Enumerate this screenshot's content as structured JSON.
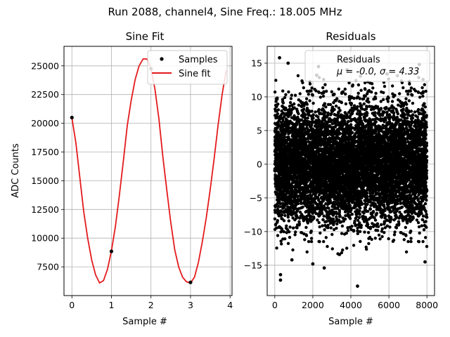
{
  "figure": {
    "suptitle": "Run 2088, channel4, Sine Freq.: 18.005 MHz"
  },
  "colors": {
    "fit_line": "#e41a1c",
    "points": "#000000",
    "grid": "#b0b0b0"
  },
  "chart_data": [
    {
      "type": "line",
      "title": "Sine Fit",
      "xlabel": "Sample #",
      "ylabel": "ADC Counts",
      "xlim": [
        -0.2,
        4.05
      ],
      "ylim": [
        5000,
        26700
      ],
      "xticks": [
        0,
        1,
        2,
        3,
        4
      ],
      "xtick_labels": [
        "0",
        "1",
        "2",
        "3",
        "4"
      ],
      "yticks": [
        7500,
        10000,
        12500,
        15000,
        17500,
        20000,
        22500,
        25000
      ],
      "ytick_labels": [
        "7500",
        "10000",
        "12500",
        "15000",
        "17500",
        "20000",
        "22500",
        "25000"
      ],
      "grid": true,
      "legend_position": "top-right",
      "series": [
        {
          "name": "Samples",
          "style": "scatter",
          "x": [
            0,
            1,
            2,
            3
          ],
          "y": [
            20500,
            8850,
            24750,
            6150
          ]
        },
        {
          "name": "Sine fit",
          "style": "line",
          "x": [
            0,
            0.1,
            0.2,
            0.3,
            0.4,
            0.5,
            0.6,
            0.7,
            0.8,
            0.9,
            1.0,
            1.1,
            1.2,
            1.3,
            1.4,
            1.5,
            1.6,
            1.7,
            1.8,
            1.9,
            2.0,
            2.1,
            2.2,
            2.3,
            2.4,
            2.5,
            2.6,
            2.7,
            2.8,
            2.9,
            3.0,
            3.1,
            3.2,
            3.3,
            3.4,
            3.5,
            3.6,
            3.7,
            3.8,
            3.9
          ],
          "y": [
            20500,
            18300,
            15300,
            12300,
            10000,
            8100,
            6800,
            6100,
            6300,
            7300,
            8900,
            11000,
            13700,
            16700,
            19800,
            22000,
            23800,
            25000,
            25600,
            25600,
            24800,
            23000,
            20400,
            17100,
            14200,
            11400,
            9000,
            7500,
            6600,
            6200,
            6100,
            6600,
            7900,
            9700,
            11800,
            14300,
            17000,
            19900,
            22500,
            24600
          ]
        }
      ]
    },
    {
      "type": "scatter",
      "title": "Residuals",
      "xlabel": "Sample #",
      "xlim": [
        -400,
        8400
      ],
      "ylim": [
        -19.5,
        17.5
      ],
      "xticks": [
        0,
        2000,
        4000,
        6000,
        8000
      ],
      "xtick_labels": [
        "0",
        "2000",
        "4000",
        "6000",
        "8000"
      ],
      "yticks": [
        -15,
        -10,
        -5,
        0,
        5,
        10,
        15
      ],
      "ytick_labels": [
        "−15",
        "−10",
        "−5",
        "0",
        "5",
        "10",
        "15"
      ],
      "grid": true,
      "legend_position": "top-right",
      "legend_label": "Residuals",
      "legend_stats": "μ = -0.0, σ = 4.33",
      "n_points": 8000,
      "sigma": 4.33,
      "mean": 0.0,
      "outliers": [
        {
          "x": 2300,
          "y": 14.5
        },
        {
          "x": 4350,
          "y": -18.1
        },
        {
          "x": 250,
          "y": 15.8
        },
        {
          "x": 700,
          "y": 15.0
        },
        {
          "x": 2200,
          "y": 13.2
        },
        {
          "x": 3800,
          "y": 14.0
        },
        {
          "x": 2600,
          "y": -15.4
        },
        {
          "x": 2000,
          "y": -14.8
        },
        {
          "x": 300,
          "y": -17.2
        },
        {
          "x": 300,
          "y": -16.4
        },
        {
          "x": 5900,
          "y": 13.4
        },
        {
          "x": 7900,
          "y": -14.5
        },
        {
          "x": 7600,
          "y": 14.8
        },
        {
          "x": 900,
          "y": -14.2
        },
        {
          "x": 3400,
          "y": -13.4
        }
      ]
    }
  ]
}
